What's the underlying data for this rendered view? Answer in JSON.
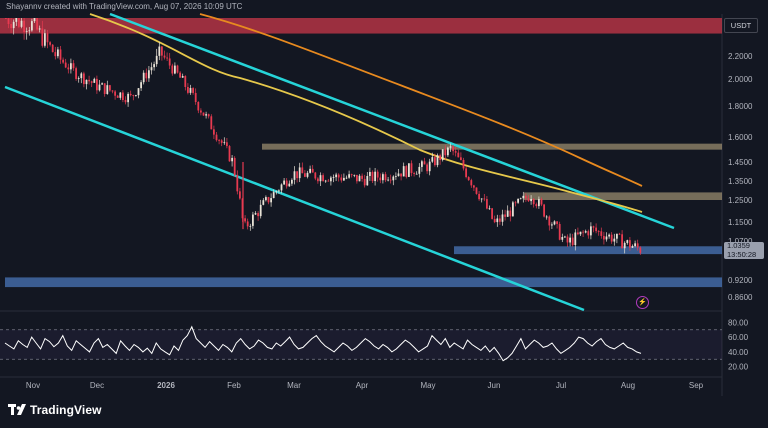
{
  "header": {
    "credit": "Shayannv created with TradingView.com, Aug 07, 2026 10:09 UTC"
  },
  "currency_label": "USDT",
  "last_price": {
    "value": "1.0359",
    "countdown": "13:50:28"
  },
  "brand": {
    "name": "TradingView"
  },
  "icons": {
    "alert": "lightning-icon",
    "logo": "tradingview-logo-icon"
  },
  "colors": {
    "background": "#131722",
    "up_candle": "#e8e2d6",
    "down_candle": "#e83a50",
    "channel_line": "#26d4d8",
    "ma_short": "#e6c84b",
    "ma_long": "#e88a1f",
    "rsi_line": "#ffffff",
    "supply_zone": "#c9384a",
    "resistance_zone": "#c9b489",
    "support_zone": "#4a76b8"
  },
  "chart_data": [
    {
      "type": "candlestick",
      "title": "",
      "y_axis_ticks": [
        "2.2000",
        "2.0000",
        "1.8000",
        "1.6000",
        "1.4500",
        "1.3500",
        "1.2500",
        "1.1500",
        "1.0700",
        "0.9200",
        "0.8600"
      ],
      "x_axis_ticks": [
        "Nov",
        "Dec",
        "2026",
        "Feb",
        "Mar",
        "Apr",
        "May",
        "Jun",
        "Jul",
        "Aug",
        "Sep"
      ],
      "approx_close_path": [
        {
          "x": "Oct",
          "y": 2.42
        },
        {
          "x": "Nov",
          "y": 2.38
        },
        {
          "x": "Nov mid",
          "y": 2.05
        },
        {
          "x": "Dec",
          "y": 1.95
        },
        {
          "x": "Dec mid",
          "y": 1.86
        },
        {
          "x": "2026",
          "y": 2.22
        },
        {
          "x": "Jan mid",
          "y": 1.78
        },
        {
          "x": "Feb",
          "y": 1.45
        },
        {
          "x": "Feb low wick",
          "y": 1.12
        },
        {
          "x": "Mar",
          "y": 1.39
        },
        {
          "x": "Apr",
          "y": 1.36
        },
        {
          "x": "May",
          "y": 1.43
        },
        {
          "x": "May mid",
          "y": 1.53
        },
        {
          "x": "Jun",
          "y": 1.14
        },
        {
          "x": "Jun mid",
          "y": 1.28
        },
        {
          "x": "Jul",
          "y": 1.06
        },
        {
          "x": "Jul mid",
          "y": 1.12
        },
        {
          "x": "Aug",
          "y": 1.0359
        }
      ],
      "zones": [
        {
          "label": "supply",
          "from": 2.33,
          "to": 2.42
        },
        {
          "label": "resistance",
          "from": 1.53,
          "to": 1.56
        },
        {
          "label": "resistance",
          "from": 1.25,
          "to": 1.29
        },
        {
          "label": "support",
          "from": 1.02,
          "to": 1.05
        },
        {
          "label": "support",
          "from": 0.895,
          "to": 0.93
        }
      ]
    },
    {
      "type": "line",
      "title": "",
      "y_axis_ticks": [
        "80.00",
        "60.00",
        "40.00",
        "20.00"
      ],
      "ylim": [
        10,
        90
      ],
      "series": [
        {
          "values": [
            52,
            48,
            44,
            55,
            50,
            46,
            60,
            52,
            44,
            58,
            54,
            47,
            52,
            62,
            48,
            42,
            55,
            50,
            45,
            40,
            52,
            58,
            46,
            50,
            44,
            38,
            55,
            48,
            42,
            50,
            46,
            40,
            45,
            38,
            52,
            44,
            40,
            36,
            48,
            42,
            56,
            62,
            74,
            58,
            52,
            46,
            54,
            48,
            42,
            50,
            46,
            40,
            52,
            58,
            50,
            44,
            48,
            56,
            52,
            46,
            44,
            52,
            48,
            54,
            60,
            50,
            44,
            46,
            52,
            58,
            62,
            54,
            48,
            44,
            40,
            46,
            52,
            48,
            42,
            46,
            52,
            58,
            54,
            48,
            44,
            50,
            46,
            40,
            44,
            50,
            56,
            52,
            46,
            40,
            44,
            48,
            62,
            56,
            50,
            58,
            46,
            52,
            48,
            44,
            56,
            50,
            46,
            42,
            48,
            40,
            46,
            38,
            28,
            32,
            38,
            48,
            58,
            44,
            50,
            56,
            52,
            46,
            48,
            52,
            44,
            38,
            42,
            46,
            52,
            60,
            58,
            52,
            48,
            54,
            58,
            50,
            46,
            44,
            48,
            52,
            46,
            44,
            40,
            38
          ]
        }
      ]
    }
  ]
}
